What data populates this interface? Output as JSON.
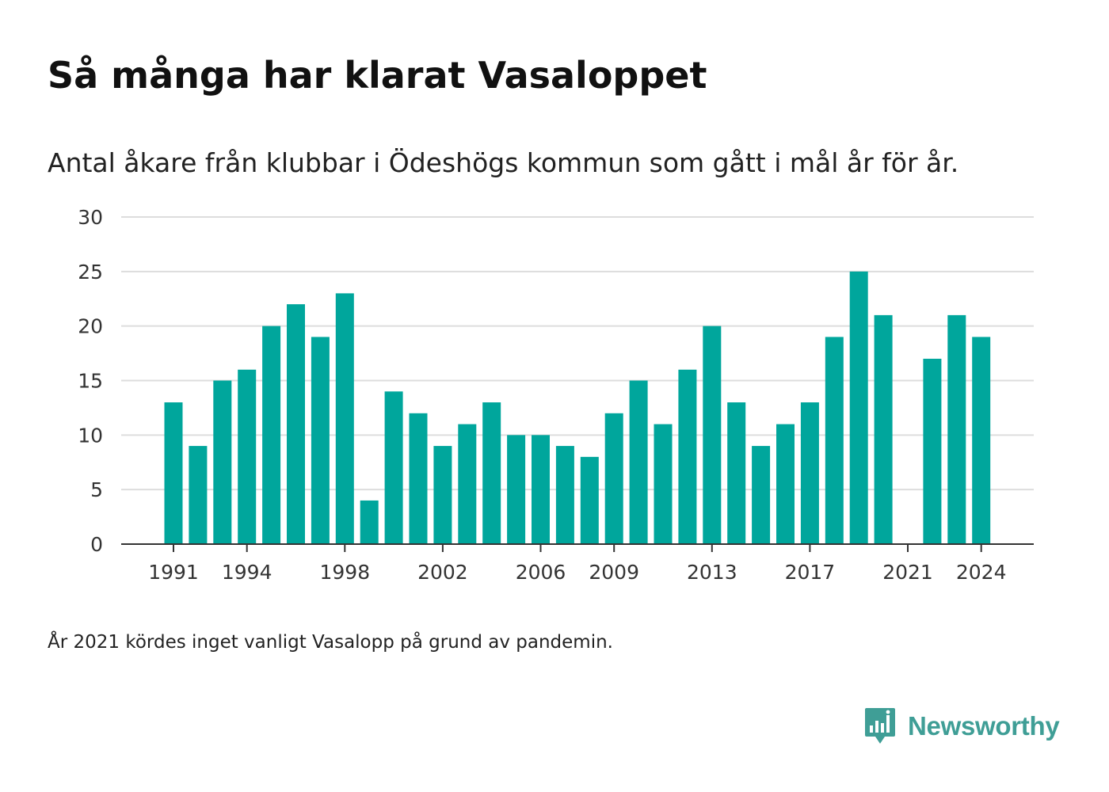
{
  "header": {
    "title": "Så många har klarat Vasaloppet",
    "subtitle": "Antal åkare från klubbar i Ödeshögs kommun som gått i mål år för år."
  },
  "footnote": "År 2021 kördes inget vanligt Vasalopp på grund av pandemin.",
  "brand": {
    "name": "Newsworthy",
    "logo_icon": "newsworthy-bar-chart-icon",
    "color": "#3f9e96"
  },
  "colors": {
    "bar": "#00a69c",
    "grid": "#dddddd",
    "axis": "#333333"
  },
  "chart_data": {
    "type": "bar",
    "title": "Så många har klarat Vasaloppet",
    "subtitle": "Antal åkare från klubbar i Ödeshögs kommun som gått i mål år för år.",
    "xlabel": "",
    "ylabel": "",
    "ylim": [
      0,
      30
    ],
    "yticks": [
      0,
      5,
      10,
      15,
      20,
      25,
      30
    ],
    "xticks": [
      "1991",
      "1994",
      "1998",
      "2002",
      "2006",
      "2009",
      "2013",
      "2017",
      "2021",
      "2024"
    ],
    "grid": true,
    "categories": [
      "1991",
      "1992",
      "1993",
      "1994",
      "1995",
      "1996",
      "1997",
      "1998",
      "1999",
      "2000",
      "2001",
      "2002",
      "2003",
      "2004",
      "2005",
      "2006",
      "2007",
      "2008",
      "2009",
      "2010",
      "2011",
      "2012",
      "2013",
      "2014",
      "2015",
      "2016",
      "2017",
      "2018",
      "2019",
      "2020",
      "2021",
      "2022",
      "2023",
      "2024"
    ],
    "values": [
      13,
      9,
      15,
      16,
      20,
      22,
      19,
      23,
      4,
      14,
      12,
      9,
      11,
      13,
      10,
      10,
      9,
      8,
      12,
      15,
      11,
      16,
      20,
      13,
      9,
      11,
      13,
      19,
      25,
      21,
      0,
      17,
      21,
      19
    ]
  }
}
